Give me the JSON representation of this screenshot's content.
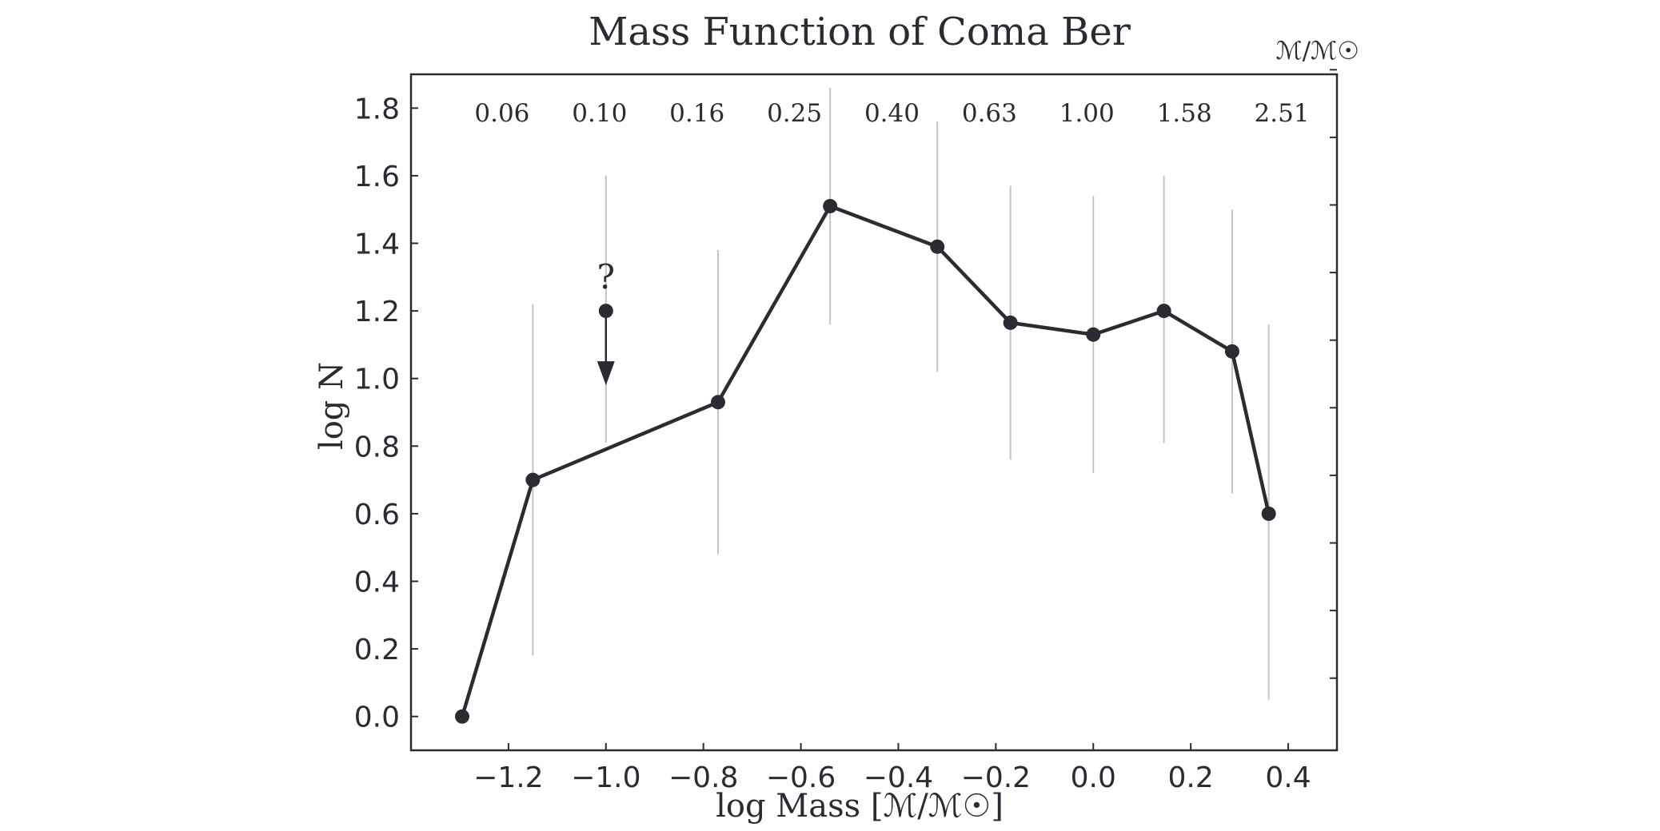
{
  "chart_data": {
    "type": "line",
    "title": "Mass Function of Coma Ber",
    "xlabel": "log Mass [ℳ/ℳ☉]",
    "ylabel": "log N",
    "secondary_xlabel": "ℳ/ℳ☉",
    "xlim": [
      -1.4,
      0.5
    ],
    "ylim": [
      -0.1,
      1.9
    ],
    "x_ticks": [
      -1.2,
      -1.0,
      -0.8,
      -0.6,
      -0.4,
      -0.2,
      0.0,
      0.2,
      0.4
    ],
    "x_tick_labels": [
      "−1.2",
      "−1.0",
      "−0.8",
      "−0.6",
      "−0.4",
      "−0.2",
      "0.0",
      "0.2",
      "0.4"
    ],
    "y_ticks": [
      0.0,
      0.2,
      0.4,
      0.6,
      0.8,
      1.0,
      1.2,
      1.4,
      1.6,
      1.8
    ],
    "y_tick_labels": [
      "0.0",
      "0.2",
      "0.4",
      "0.6",
      "0.8",
      "1.0",
      "1.2",
      "1.4",
      "1.6",
      "1.8"
    ],
    "secondary_x_labels": [
      {
        "x": -1.2,
        "label": "0.06"
      },
      {
        "x": -1.0,
        "label": "0.10"
      },
      {
        "x": -0.8,
        "label": "0.16"
      },
      {
        "x": -0.6,
        "label": "0.25"
      },
      {
        "x": -0.4,
        "label": "0.40"
      },
      {
        "x": -0.2,
        "label": "0.63"
      },
      {
        "x": 0.0,
        "label": "1.00"
      },
      {
        "x": 0.2,
        "label": "1.58"
      },
      {
        "x": 0.4,
        "label": "2.51"
      }
    ],
    "series": [
      {
        "x": [
          -1.295,
          -1.15,
          -0.77,
          -0.54,
          -0.32,
          -0.17,
          0.0,
          0.145,
          0.285,
          0.36
        ],
        "y": [
          0.0,
          0.7,
          0.93,
          1.51,
          1.39,
          1.165,
          1.13,
          1.2,
          1.08,
          0.6
        ],
        "y_err_low": [
          null,
          0.18,
          0.48,
          1.16,
          1.02,
          0.76,
          0.72,
          0.81,
          0.66,
          0.05
        ],
        "y_err_high": [
          null,
          1.22,
          1.38,
          1.86,
          1.76,
          1.57,
          1.54,
          1.6,
          1.5,
          1.16
        ]
      }
    ],
    "upper_limit": {
      "x": -1.0,
      "y": 1.2,
      "arrow_to": 0.98,
      "y_err_low": 0.81,
      "y_err_high": 1.6,
      "annotation": "?"
    },
    "grid": false,
    "colors": {
      "line": "#2b2b33",
      "errorbar": "#c4c4c4",
      "axis": "#2b2b33"
    }
  }
}
